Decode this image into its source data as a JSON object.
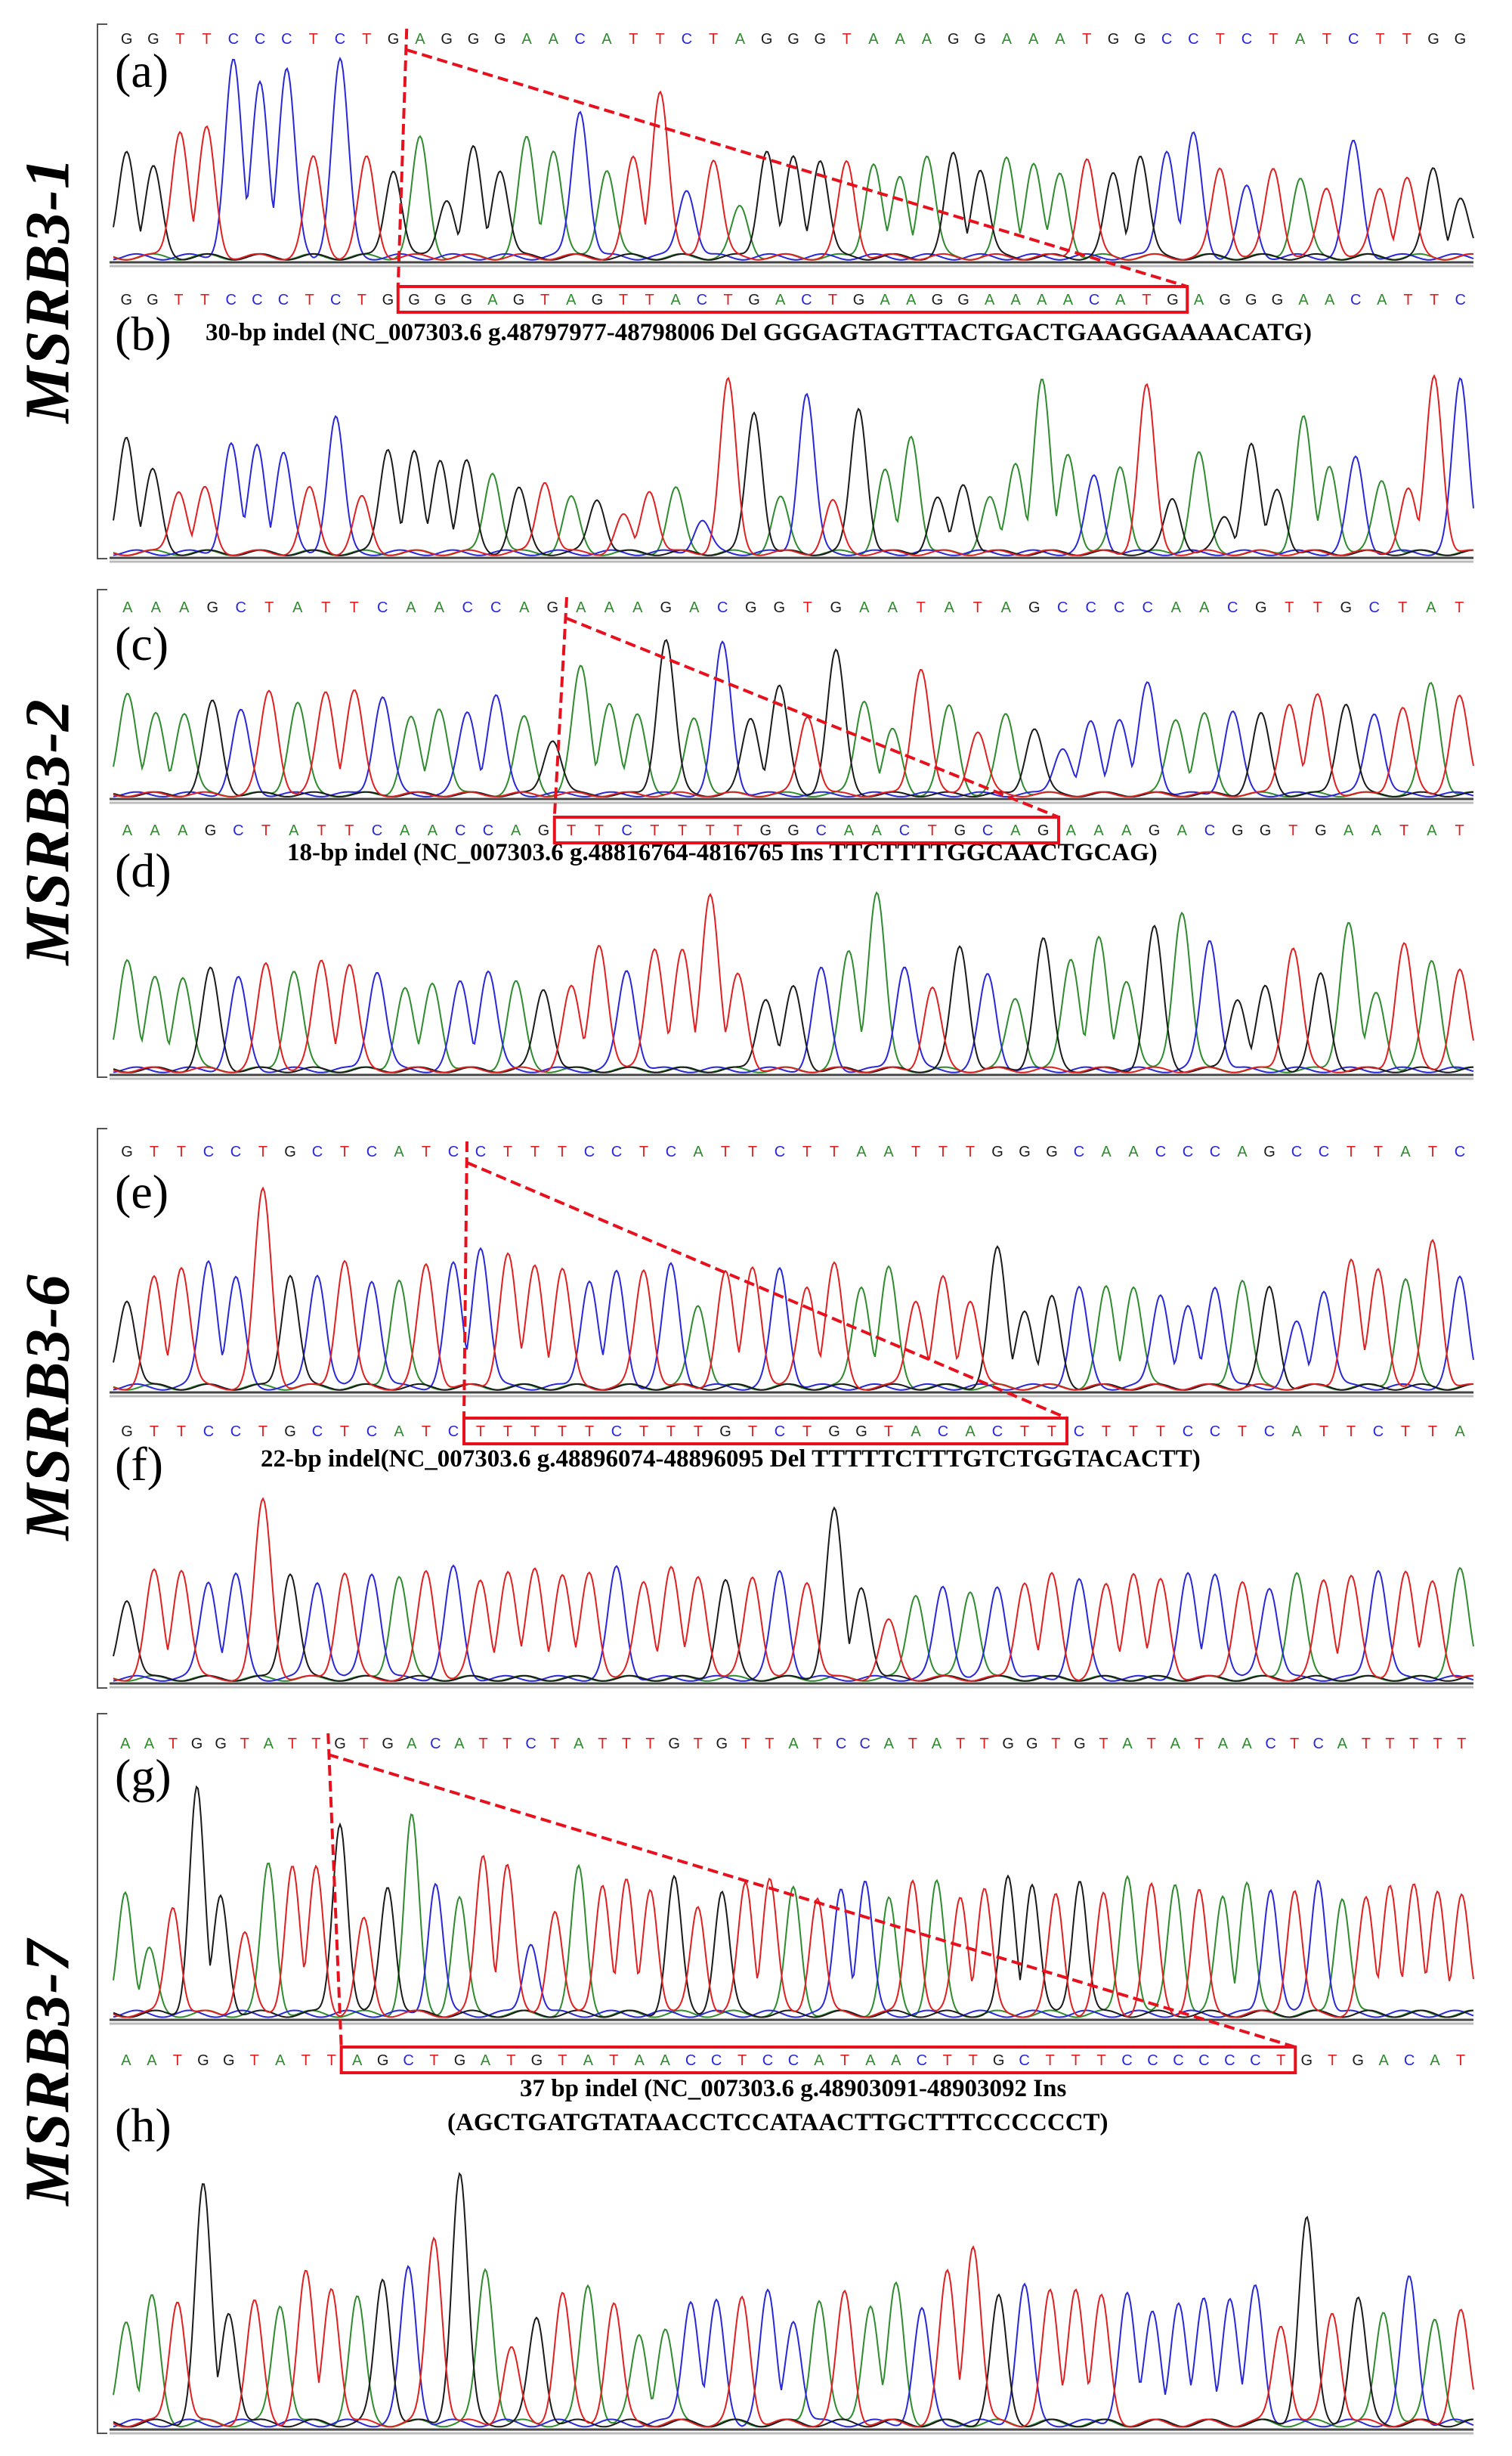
{
  "figure": {
    "base_colors": {
      "G": "#1a1a1a",
      "A": "#2e8b2e",
      "T": "#e02020",
      "C": "#2828d8"
    },
    "highlight_color": "#e8101c",
    "groups": [
      {
        "gene": "MSRB3-1",
        "top_panel": {
          "letter": "(a)",
          "sequence": "GGTTCCCTCTGAGGGAACATTCTAGGGTAAAGGAAATGGCCTCTATCTTGG",
          "cut_after": 11,
          "peak_heights": [
            0.55,
            0.45,
            0.65,
            0.65,
            1.0,
            0.9,
            0.95,
            0.5,
            1.0,
            0.5,
            0.45,
            0.6,
            0.3,
            0.55,
            0.45,
            0.6,
            0.55,
            0.75,
            0.45,
            0.5,
            0.85,
            0.35,
            0.5,
            0.25,
            0.55,
            0.5,
            0.5,
            0.48,
            0.48,
            0.4,
            0.52,
            0.52,
            0.45,
            0.5,
            0.48,
            0.42,
            0.5,
            0.42,
            0.52,
            0.55,
            0.62,
            0.45,
            0.35,
            0.45,
            0.4,
            0.35,
            0.58,
            0.35,
            0.4,
            0.45,
            0.3
          ]
        },
        "bottom_panel": {
          "letter": "(b)",
          "sequence": "GGTTCCCTCTGGGGAGTAGTTACTGACTGAAGGAAAACATGAGGGAACATTC",
          "highlight": {
            "start": 11,
            "end": 41,
            "text": "GGGAGTAGTTACTGACTGAAGGAAAACATG"
          },
          "caption": [
            "30-bp indel (NC_007303.6 g.48797977-48798006 Del GGGAGTAGTTACTGACTGAAGGAAAACATG)"
          ],
          "peak_heights": [
            0.65,
            0.45,
            0.35,
            0.35,
            0.6,
            0.6,
            0.55,
            0.35,
            0.75,
            0.3,
            0.58,
            0.55,
            0.52,
            0.5,
            0.45,
            0.35,
            0.4,
            0.3,
            0.3,
            0.2,
            0.35,
            0.35,
            0.18,
            0.95,
            0.78,
            0.3,
            0.88,
            0.28,
            0.8,
            0.45,
            0.65,
            0.3,
            0.38,
            0.3,
            0.5,
            0.95,
            0.55,
            0.42,
            0.48,
            0.92,
            0.3,
            0.55,
            0.2,
            0.6,
            0.35,
            0.75,
            0.48,
            0.52,
            0.4,
            0.35,
            0.98,
            0.95
          ]
        }
      },
      {
        "gene": "MSRB3-2",
        "top_panel": {
          "letter": "(c)",
          "sequence": "AAAGCTATTCAACCAGAAAGACGGTGAATATAGCCCCAACGTTGCTAT",
          "cut_after": 16,
          "peak_heights": [
            0.65,
            0.5,
            0.52,
            0.58,
            0.52,
            0.65,
            0.58,
            0.65,
            0.65,
            0.62,
            0.48,
            0.55,
            0.52,
            0.62,
            0.48,
            0.35,
            0.8,
            0.58,
            0.5,
            0.98,
            0.48,
            0.95,
            0.48,
            0.68,
            0.5,
            0.9,
            0.6,
            0.4,
            0.8,
            0.55,
            0.4,
            0.5,
            0.42,
            0.3,
            0.45,
            0.48,
            0.7,
            0.48,
            0.5,
            0.52,
            0.5,
            0.58,
            0.62,
            0.58,
            0.52,
            0.55,
            0.7,
            0.62
          ]
        },
        "bottom_panel": {
          "letter": "(d)",
          "sequence": "AAAGCTATTCAACCAGTTCTTTTGGCAACTGCAGAAAGACGGTGAATAT",
          "highlight": {
            "start": 16,
            "end": 34,
            "text": "TTCTTTTGGCAACTGCAG"
          },
          "caption": [
            "18-bp indel (NC_007303.6 g.48816764-4816765 Ins TTCTTTTGGCAACTGCAG)"
          ],
          "peak_heights": [
            0.62,
            0.5,
            0.52,
            0.55,
            0.5,
            0.58,
            0.55,
            0.6,
            0.58,
            0.55,
            0.45,
            0.48,
            0.48,
            0.55,
            0.48,
            0.45,
            0.45,
            0.7,
            0.55,
            0.68,
            0.65,
            0.98,
            0.52,
            0.4,
            0.45,
            0.55,
            0.65,
            0.98,
            0.58,
            0.45,
            0.68,
            0.52,
            0.4,
            0.72,
            0.62,
            0.72,
            0.5,
            0.78,
            0.88,
            0.72,
            0.4,
            0.45,
            0.68,
            0.52,
            0.82,
            0.42,
            0.7,
            0.6,
            0.55
          ]
        }
      },
      {
        "gene": "MSRB3-6",
        "top_panel": {
          "letter": "(e)",
          "sequence": "GTTCCTGCTCATCCTTTCCTCATTCTTAATTTGGGCAACCCAGCCTTATC",
          "cut_after": 13,
          "peak_heights": [
            0.45,
            0.55,
            0.62,
            0.65,
            0.55,
            1.0,
            0.58,
            0.58,
            0.65,
            0.55,
            0.55,
            0.62,
            0.62,
            0.72,
            0.68,
            0.62,
            0.6,
            0.55,
            0.58,
            0.6,
            0.62,
            0.42,
            0.58,
            0.62,
            0.6,
            0.52,
            0.62,
            0.52,
            0.6,
            0.45,
            0.55,
            0.45,
            0.7,
            0.4,
            0.45,
            0.5,
            0.5,
            0.52,
            0.48,
            0.4,
            0.52,
            0.55,
            0.5,
            0.32,
            0.5,
            0.65,
            0.6,
            0.55,
            0.75,
            0.55
          ]
        },
        "bottom_panel": {
          "letter": "(f)",
          "sequence": "GTTCCTGCTCATCTTTTTCTTTGTCTGGTACACTTCTTTCCTCATTCTTA",
          "highlight": {
            "start": 13,
            "end": 35,
            "text": "TTTTTCTTTGTCTGGTACACTT"
          },
          "caption": [
            "22-bp indel(NC_007303.6 g.48896074-48896095 Del TTTTTCTTTGTCTGGTACACTT)"
          ],
          "peak_heights": [
            0.45,
            0.6,
            0.62,
            0.55,
            0.58,
            1.0,
            0.6,
            0.55,
            0.6,
            0.6,
            0.58,
            0.6,
            0.62,
            0.55,
            0.6,
            0.62,
            0.58,
            0.6,
            0.62,
            0.55,
            0.62,
            0.58,
            0.55,
            0.58,
            0.6,
            0.55,
            0.95,
            0.52,
            0.32,
            0.48,
            0.52,
            0.5,
            0.52,
            0.55,
            0.58,
            0.55,
            0.52,
            0.6,
            0.55,
            0.58,
            0.6,
            0.55,
            0.52,
            0.6,
            0.55,
            0.58,
            0.62,
            0.6,
            0.55,
            0.62
          ]
        }
      },
      {
        "gene": "MSRB3-7",
        "top_panel": {
          "letter": "(g)",
          "sequence": "AATGGTATTGTGACATTCTATTTGTGTTATCCATATTGGTGTATATAACTCATTTTT",
          "cut_after": 9,
          "peak_heights": [
            0.55,
            0.28,
            0.48,
            1.0,
            0.52,
            0.36,
            0.66,
            0.66,
            0.64,
            0.85,
            0.41,
            0.57,
            0.87,
            0.58,
            0.51,
            0.7,
            0.66,
            0.32,
            0.46,
            0.64,
            0.58,
            0.58,
            0.56,
            0.6,
            0.48,
            0.54,
            0.58,
            0.6,
            0.55,
            0.52,
            0.56,
            0.58,
            0.5,
            0.6,
            0.58,
            0.52,
            0.55,
            0.6,
            0.58,
            0.52,
            0.6,
            0.52,
            0.62,
            0.56,
            0.58,
            0.54,
            0.52,
            0.58,
            0.56,
            0.55,
            0.6,
            0.52,
            0.5,
            0.58,
            0.56,
            0.55,
            0.52
          ]
        },
        "bottom_panel": {
          "letter": "(h)",
          "sequence": "AATGGTATTAGCTGATGTATAACCTCCATAACTTGCTTTCCCCCCTGTGACAT",
          "highlight": {
            "start": 9,
            "end": 46,
            "text": "AGCTGATGTATAACCTCCATAACTTGCTTTCCCCCCT"
          },
          "caption": [
            "37 bp indel (NC_007303.6 g.48903091-48903092 Ins",
            "(AGCTGATGTATAACCTCCATAACTTGCTTTCCCCCCT)"
          ],
          "peak_heights": [
            0.42,
            0.5,
            0.5,
            0.95,
            0.45,
            0.48,
            0.48,
            0.6,
            0.55,
            0.5,
            0.58,
            0.62,
            0.75,
            1.0,
            0.62,
            0.3,
            0.42,
            0.52,
            0.55,
            0.48,
            0.35,
            0.38,
            0.5,
            0.48,
            0.5,
            0.52,
            0.42,
            0.5,
            0.52,
            0.48,
            0.55,
            0.45,
            0.6,
            0.72,
            0.5,
            0.55,
            0.52,
            0.55,
            0.5,
            0.52,
            0.45,
            0.48,
            0.5,
            0.5,
            0.55,
            0.4,
            0.82,
            0.45,
            0.5,
            0.45,
            0.58,
            0.42,
            0.45
          ]
        }
      }
    ]
  }
}
